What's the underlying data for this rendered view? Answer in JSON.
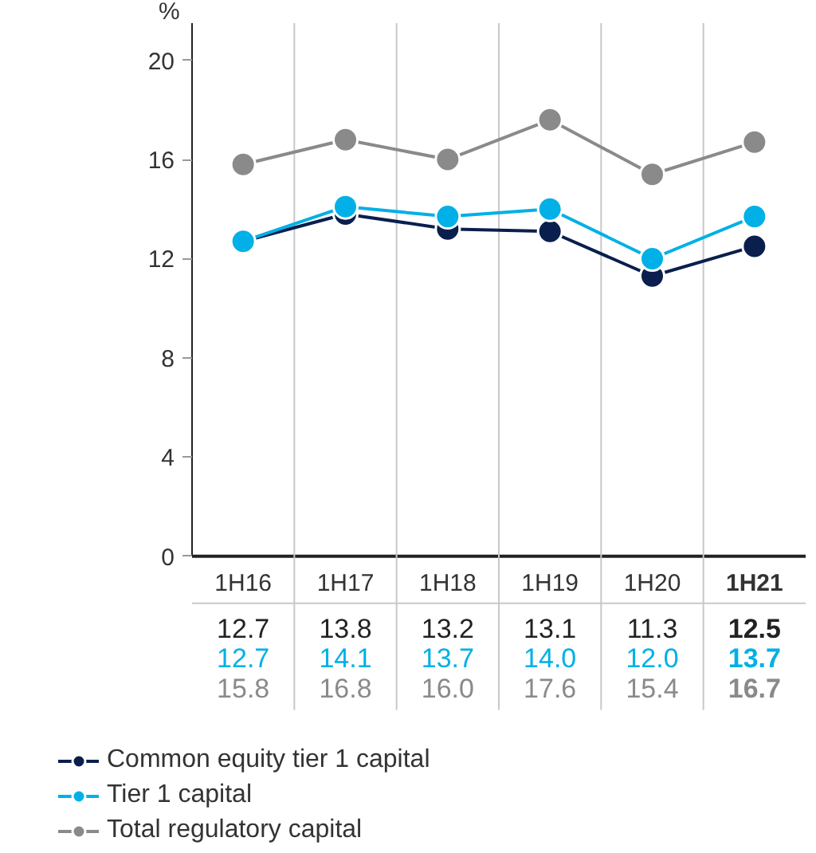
{
  "chart_data": {
    "type": "line",
    "ylabel": "%",
    "categories": [
      "1H16",
      "1H17",
      "1H18",
      "1H19",
      "1H20",
      "1H21"
    ],
    "series": [
      {
        "name": "Common equity tier 1 capital",
        "color": "#0a1f4d",
        "values": [
          12.7,
          13.8,
          13.2,
          13.1,
          11.3,
          12.5
        ],
        "value_labels": [
          "12.7",
          "13.8",
          "13.2",
          "13.1",
          "11.3",
          "12.5"
        ]
      },
      {
        "name": "Tier 1 capital",
        "color": "#00b0e6",
        "values": [
          12.7,
          14.1,
          13.7,
          14.0,
          12.0,
          13.7
        ],
        "value_labels": [
          "12.7",
          "14.1",
          "13.7",
          "14.0",
          "12.0",
          "13.7"
        ]
      },
      {
        "name": "Total regulatory capital",
        "color": "#8a8a8a",
        "values": [
          15.8,
          16.8,
          16.0,
          17.6,
          15.4,
          16.7
        ],
        "value_labels": [
          "15.8",
          "16.8",
          "16.0",
          "17.6",
          "15.4",
          "16.7"
        ]
      }
    ],
    "ylim": [
      0,
      21.5
    ],
    "yticks": [
      0,
      4,
      8,
      12,
      16,
      20
    ],
    "grid": "x",
    "marker": "circle",
    "line_style": "solid",
    "legend": "bottom"
  }
}
